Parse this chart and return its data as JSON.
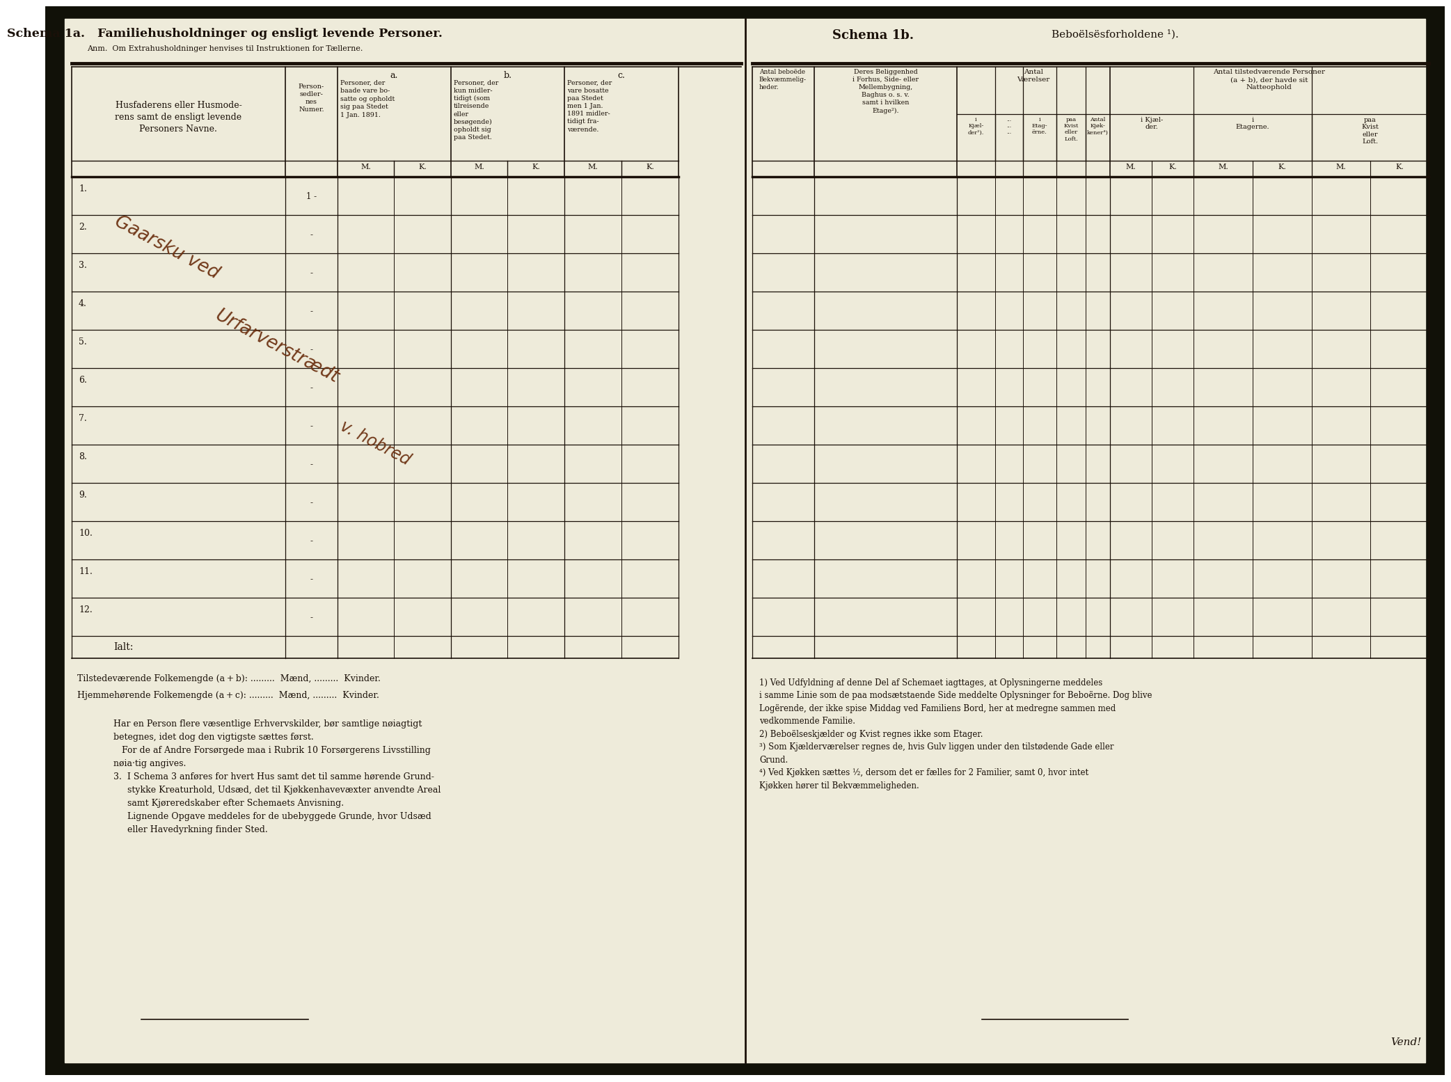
{
  "bg_color": "#eeebda",
  "dark_color": "#1a1008",
  "line_color": "#1a1008",
  "page_bg": "#edeada",
  "title_1a": "Schema 1a.   Familiehusholdninger og ensligt levende Personer.",
  "subtitle_1a": "Anm.  Om Extrahusholdninger henvises til Instruktionen for Tællerne.",
  "title_1b": "Schema 1b.",
  "subtitle_1b": "Beboëlsësforholdene ¹).",
  "row_numbers": [
    "1.",
    "2.",
    "3.",
    "4.",
    "5.",
    "6.",
    "7.",
    "8.",
    "9.",
    "10.",
    "11.",
    "12."
  ],
  "footer_1": "Tilstedeværende Folkemengde (a + b):  .........  Mænd,  .........  Kvinder.",
  "footer_2": "Hjemmehørende Folkemengde (a + c):  .........  Mænd,  .........  Kvinder.",
  "vend_text": "Vend!"
}
